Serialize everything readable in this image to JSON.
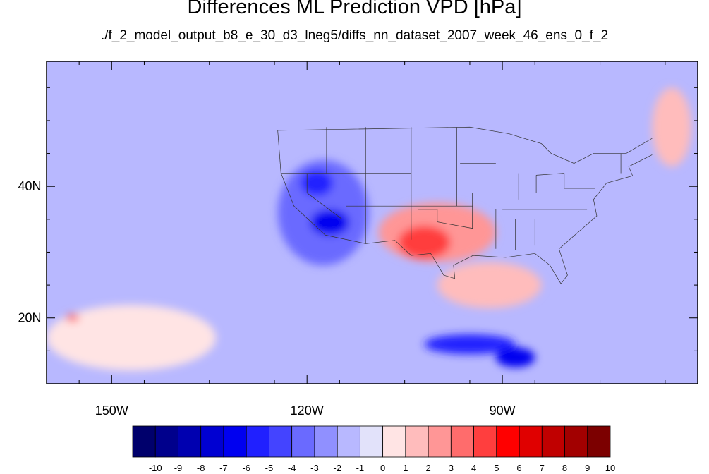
{
  "figure": {
    "title": "Differences ML Prediction VPD [hPa]",
    "subtitle": "./f_2_model_output_b8_e_30_d3_lneg5/diffs_nn_dataset_2007_week_46_ens_0_f_2"
  },
  "map": {
    "projection": "cylindrical-equidistant",
    "lon_range": [
      -160,
      -60
    ],
    "lat_range": [
      10,
      59
    ],
    "lon_ticks": [
      {
        "value": -150,
        "label": "150W"
      },
      {
        "value": -120,
        "label": "120W"
      },
      {
        "value": -90,
        "label": "90W"
      }
    ],
    "lat_ticks": [
      {
        "value": 40,
        "label": "40N"
      },
      {
        "value": 20,
        "label": "20N"
      }
    ],
    "background_level": "-1",
    "regions": [
      {
        "name": "west-coast-dry-bias",
        "lon": -117.5,
        "lat": 36,
        "rx": 7,
        "ry": 8,
        "level": "-3"
      },
      {
        "name": "southern-california-strong-negative",
        "lon": -116.5,
        "lat": 34.5,
        "rx": 3,
        "ry": 2,
        "level": "-6"
      },
      {
        "name": "great-basin-negative",
        "lon": -118.5,
        "lat": 40.5,
        "rx": 2.5,
        "ry": 2,
        "level": "-5"
      },
      {
        "name": "southern-plains-positive",
        "lon": -100,
        "lat": 33,
        "rx": 9,
        "ry": 4.5,
        "level": "3"
      },
      {
        "name": "texas-positive-core",
        "lon": -102,
        "lat": 31.5,
        "rx": 4,
        "ry": 2.5,
        "level": "5"
      },
      {
        "name": "gulf-of-mexico-positive",
        "lon": -92,
        "lat": 25,
        "rx": 8,
        "ry": 3.5,
        "level": "2"
      },
      {
        "name": "central-america-negative",
        "lon": -95,
        "lat": 16,
        "rx": 7,
        "ry": 1.5,
        "level": "-5"
      },
      {
        "name": "eastern-pacific-negative",
        "lon": -88,
        "lat": 14,
        "rx": 3,
        "ry": 1.5,
        "level": "-6"
      },
      {
        "name": "subtropical-pacific-positive",
        "lon": -147,
        "lat": 17,
        "rx": 13,
        "ry": 5,
        "level": "1"
      },
      {
        "name": "hawaii-positive",
        "lon": -156,
        "lat": 20,
        "rx": 1,
        "ry": 0.6,
        "level": "4"
      },
      {
        "name": "north-atlantic-positive",
        "lon": -64,
        "lat": 49,
        "rx": 3,
        "ry": 6,
        "level": "2"
      }
    ]
  },
  "colorbar": {
    "levels": [
      "-10",
      "-9",
      "-8",
      "-7",
      "-6",
      "-5",
      "-4",
      "-3",
      "-2",
      "-1",
      "0",
      "1",
      "2",
      "3",
      "4",
      "5",
      "6",
      "7",
      "8",
      "9",
      "10"
    ],
    "colors": [
      "#00006c",
      "#00008c",
      "#0000b0",
      "#0000d2",
      "#0000f0",
      "#2020ff",
      "#4444ff",
      "#6a6aff",
      "#9090ff",
      "#b8b8ff",
      "#e2e2fa",
      "#ffe4e4",
      "#ffbcbc",
      "#ff9696",
      "#ff6c6c",
      "#ff3e3e",
      "#ff0000",
      "#e00000",
      "#c00000",
      "#a20000",
      "#7c0000"
    ],
    "ticks": [
      "-10",
      "-9",
      "-8",
      "-7",
      "-6",
      "-5",
      "-4",
      "-3",
      "-2",
      "-1",
      "0",
      "1",
      "2",
      "3",
      "4",
      "5",
      "6",
      "7",
      "8",
      "9",
      "10"
    ]
  }
}
